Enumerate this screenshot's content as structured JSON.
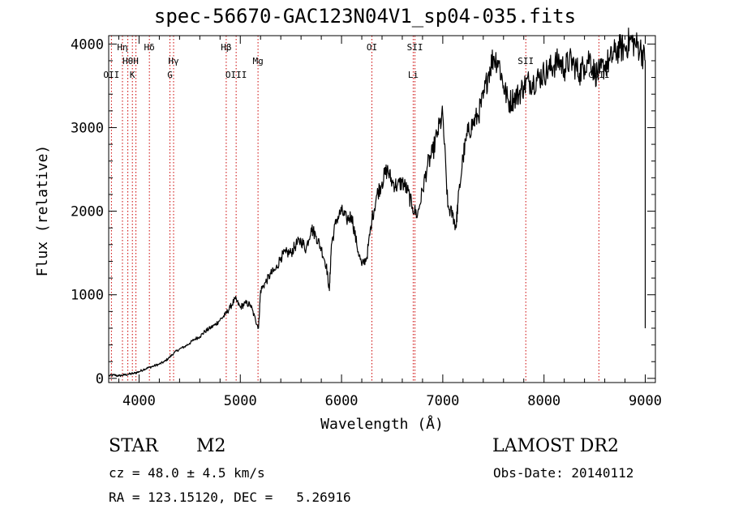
{
  "title": "spec-56670-GAC123N04V1_sp04-035.fits",
  "info": {
    "object_class": "STAR",
    "subclass": "M2",
    "survey": "LAMOST DR2",
    "redshift_line": "cz = 48.0 ± 4.5 km/s",
    "obs_date_line": "Obs-Date: 20140112",
    "coords_line": "RA = 123.15120, DEC =   5.26916"
  },
  "chart_data": {
    "type": "line",
    "title": "spec-56670-GAC123N04V1_sp04-035.fits",
    "xlabel": "Wavelength (Å)",
    "ylabel": "Flux (relative)",
    "xlim": [
      3700,
      9100
    ],
    "ylim": [
      -50,
      4100
    ],
    "xticks": [
      4000,
      5000,
      6000,
      7000,
      8000,
      9000
    ],
    "yticks": [
      0,
      1000,
      2000,
      3000,
      4000
    ],
    "grid": false,
    "series": [
      {
        "x": [
          3700,
          3750,
          3800,
          3850,
          3900,
          3950,
          4000,
          4050,
          4100,
          4150,
          4200,
          4250,
          4300,
          4350,
          4400,
          4450,
          4500,
          4550,
          4600,
          4650,
          4700,
          4750,
          4800,
          4850,
          4900,
          4950,
          5000,
          5050,
          5100,
          5150,
          5180,
          5200,
          5250,
          5300,
          5350,
          5400,
          5450,
          5500,
          5550,
          5600,
          5650,
          5700,
          5750,
          5800,
          5850,
          5880,
          5900,
          5950,
          6000,
          6050,
          6100,
          6150,
          6200,
          6250,
          6300,
          6350,
          6400,
          6450,
          6500,
          6550,
          6600,
          6650,
          6700,
          6750,
          6800,
          6850,
          6900,
          6950,
          7000,
          7050,
          7100,
          7130,
          7150,
          7200,
          7250,
          7300,
          7350,
          7400,
          7450,
          7500,
          7550,
          7600,
          7650,
          7700,
          7750,
          7800,
          7850,
          7900,
          7950,
          8000,
          8050,
          8100,
          8150,
          8200,
          8250,
          8300,
          8350,
          8400,
          8450,
          8500,
          8550,
          8600,
          8650,
          8700,
          8750,
          8800,
          8850,
          8900,
          8950,
          9000
        ],
        "y": [
          30,
          40,
          30,
          40,
          50,
          60,
          80,
          110,
          130,
          150,
          170,
          200,
          250,
          310,
          350,
          380,
          420,
          470,
          500,
          560,
          600,
          640,
          700,
          760,
          850,
          950,
          850,
          900,
          880,
          700,
          600,
          1050,
          1150,
          1250,
          1300,
          1450,
          1500,
          1500,
          1600,
          1650,
          1550,
          1800,
          1700,
          1550,
          1350,
          1050,
          1600,
          1900,
          2000,
          1900,
          1950,
          1600,
          1350,
          1450,
          1900,
          2200,
          2350,
          2500,
          2350,
          2300,
          2350,
          2250,
          2050,
          1950,
          2250,
          2550,
          2700,
          2950,
          3150,
          2050,
          1950,
          1800,
          2100,
          2650,
          2950,
          3050,
          3150,
          3350,
          3650,
          3850,
          3800,
          3500,
          3300,
          3350,
          3400,
          3500,
          3550,
          3550,
          3600,
          3650,
          3700,
          3750,
          3800,
          3700,
          3800,
          3750,
          3650,
          3750,
          3850,
          3650,
          3650,
          3750,
          3800,
          3900,
          3950,
          3950,
          4050,
          4000,
          3950,
          3800
        ]
      }
    ],
    "line_labels": [
      {
        "wavelength": 3727,
        "label": "OII",
        "row": 3
      },
      {
        "wavelength": 3836,
        "label": "Hη",
        "row": 1
      },
      {
        "wavelength": 3889,
        "label": "Hθ",
        "row": 2
      },
      {
        "wavelength": 3934,
        "label": "K",
        "row": 3
      },
      {
        "wavelength": 3969,
        "label": "H",
        "row": 2
      },
      {
        "wavelength": 4102,
        "label": "Hδ",
        "row": 1
      },
      {
        "wavelength": 4305,
        "label": "G",
        "row": 3
      },
      {
        "wavelength": 4341,
        "label": "Hγ",
        "row": 2
      },
      {
        "wavelength": 4861,
        "label": "Hβ",
        "row": 1
      },
      {
        "wavelength": 4959,
        "label": "OIII",
        "row": 3
      },
      {
        "wavelength": 5175,
        "label": "Mg",
        "row": 2
      },
      {
        "wavelength": 6300,
        "label": "OI",
        "row": 1
      },
      {
        "wavelength": 6708,
        "label": "Li",
        "row": 3
      },
      {
        "wavelength": 6725,
        "label": "SII",
        "row": 1
      },
      {
        "wavelength": 7820,
        "label": "SII",
        "row": 2
      },
      {
        "wavelength": 8542,
        "label": "CaII",
        "row": 3
      }
    ],
    "line_marker_color": "#cc0000",
    "line_color": "#000000"
  }
}
